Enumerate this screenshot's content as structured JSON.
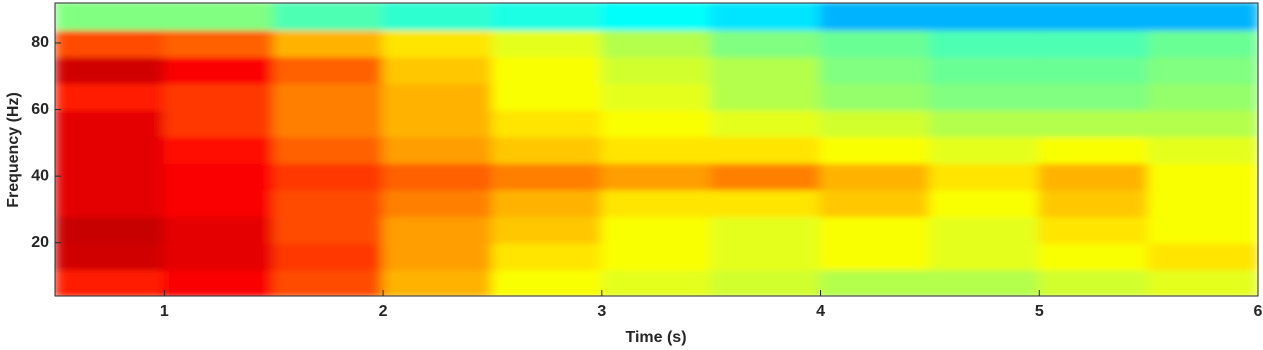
{
  "chart_data": {
    "type": "heatmap",
    "colormap": "jet",
    "xlabel": "Time (s)",
    "ylabel": "Frequency (Hz)",
    "x": [
      0.5,
      1,
      1.5,
      2,
      2.5,
      3,
      3.5,
      4,
      4.5,
      5,
      5.5,
      6
    ],
    "y": [
      4,
      12,
      20,
      28,
      36,
      44,
      52,
      60,
      68,
      76,
      84,
      92
    ],
    "z": [
      [
        0.85,
        0.88,
        0.8,
        0.7,
        0.62,
        0.6,
        0.58,
        0.55,
        0.55,
        0.58,
        0.6
      ],
      [
        0.92,
        0.9,
        0.82,
        0.72,
        0.65,
        0.62,
        0.6,
        0.62,
        0.6,
        0.62,
        0.65
      ],
      [
        0.93,
        0.9,
        0.8,
        0.72,
        0.68,
        0.62,
        0.6,
        0.62,
        0.6,
        0.65,
        0.62
      ],
      [
        0.9,
        0.88,
        0.8,
        0.75,
        0.7,
        0.65,
        0.65,
        0.68,
        0.62,
        0.68,
        0.62
      ],
      [
        0.9,
        0.88,
        0.82,
        0.78,
        0.75,
        0.72,
        0.75,
        0.7,
        0.65,
        0.7,
        0.62
      ],
      [
        0.9,
        0.86,
        0.78,
        0.72,
        0.68,
        0.65,
        0.65,
        0.62,
        0.6,
        0.62,
        0.6
      ],
      [
        0.9,
        0.82,
        0.75,
        0.7,
        0.65,
        0.62,
        0.6,
        0.58,
        0.55,
        0.55,
        0.55
      ],
      [
        0.85,
        0.82,
        0.75,
        0.7,
        0.62,
        0.6,
        0.55,
        0.52,
        0.5,
        0.5,
        0.52
      ],
      [
        0.92,
        0.88,
        0.78,
        0.68,
        0.62,
        0.58,
        0.55,
        0.5,
        0.48,
        0.48,
        0.5
      ],
      [
        0.8,
        0.78,
        0.7,
        0.65,
        0.6,
        0.55,
        0.5,
        0.48,
        0.45,
        0.45,
        0.48
      ],
      [
        0.5,
        0.5,
        0.45,
        0.42,
        0.4,
        0.38,
        0.35,
        0.3,
        0.3,
        0.3,
        0.3
      ]
    ],
    "xlim": [
      0.5,
      6
    ],
    "ylim": [
      4,
      92
    ],
    "xticks": [
      1,
      2,
      3,
      4,
      5,
      6
    ],
    "yticks": [
      20,
      40,
      60,
      80
    ]
  }
}
